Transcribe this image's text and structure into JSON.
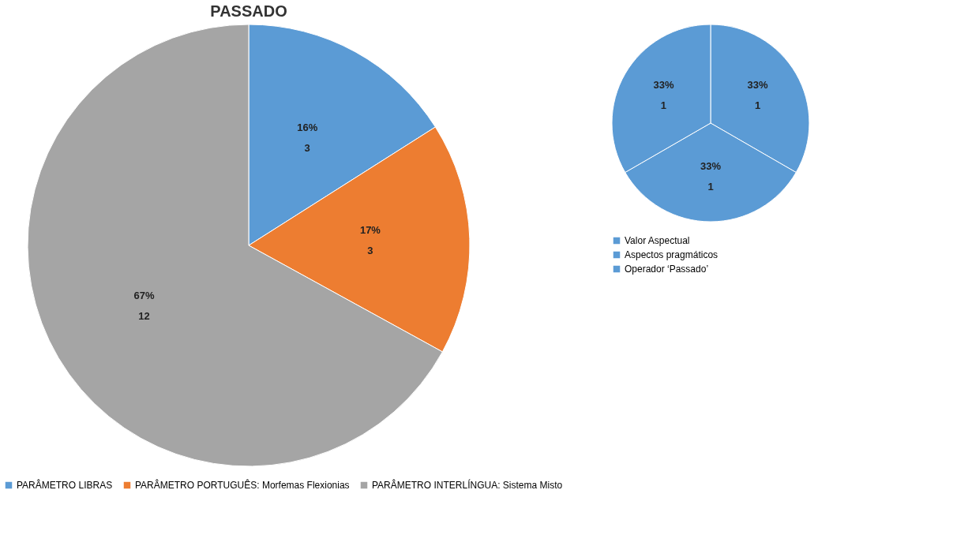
{
  "chart_data": [
    {
      "type": "pie",
      "title": "PASSADO",
      "categories": [
        "PARÂMETRO LIBRAS",
        "PARÂMETRO PORTUGUÊS: Morfemas Flexionias",
        "PARÂMETRO INTERLÍNGUA: Sistema Misto"
      ],
      "values": [
        16,
        17,
        67
      ],
      "value_labels": [
        "16%",
        "17%",
        "67%"
      ],
      "colors": [
        "#5b9bd5",
        "#ed7d31",
        "#a5a5a5"
      ],
      "legend": "bottom",
      "annotations": [
        {
          "text": "3",
          "x": "PARÂMETRO LIBRAS"
        },
        {
          "text": "3",
          "x": "PARÂMETRO PORTUGUÊS: Morfemas Flexionias"
        },
        {
          "text": "12",
          "x": "PARÂMETRO INTERLÍNGUA: Sistema Misto"
        }
      ]
    },
    {
      "type": "pie",
      "categories": [
        "Valor Aspectual",
        "Aspectos pragmáticos",
        "Operador ‘Passado’"
      ],
      "values": [
        33,
        33,
        33
      ],
      "value_labels": [
        "33%",
        "33%",
        "33%"
      ],
      "colors": [
        "#5b9bd5",
        "#5b9bd5",
        "#5b9bd5"
      ],
      "legend": "bottom",
      "annotations": [
        {
          "text": "1",
          "x": "Valor Aspectual"
        },
        {
          "text": "1",
          "x": "Aspectos pragmáticos"
        },
        {
          "text": "1",
          "x": "Operador ‘Passado’"
        }
      ]
    }
  ]
}
